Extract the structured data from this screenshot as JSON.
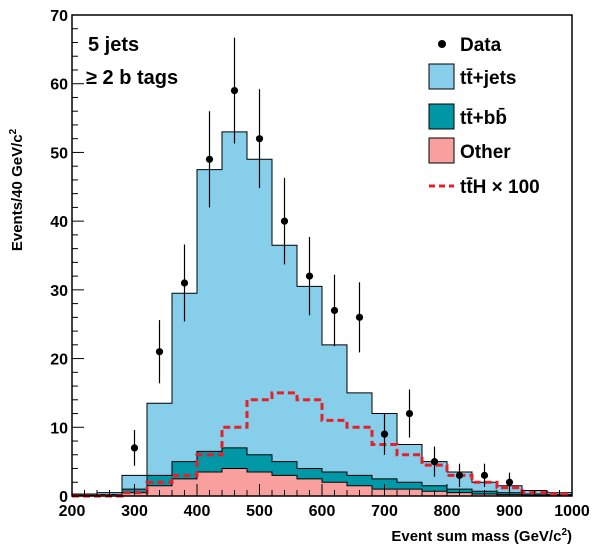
{
  "chart_data": {
    "type": "histogram",
    "xlabel": "Event sum mass (GeV/c",
    "xlabel_sup": "2",
    "xlabel_end": ")",
    "ylabel": "Events/40 GeV/c",
    "ylabel_sup": "2",
    "xlim": [
      200,
      1000
    ],
    "ylim": [
      0,
      70
    ],
    "x_ticks": [
      200,
      300,
      400,
      500,
      600,
      700,
      800,
      900,
      1000
    ],
    "y_ticks": [
      0,
      10,
      20,
      30,
      40,
      50,
      60,
      70
    ],
    "annotations": [
      "5 jets",
      "≥ 2 b tags"
    ],
    "bin_edges": [
      200,
      240,
      280,
      320,
      360,
      400,
      440,
      480,
      520,
      560,
      600,
      640,
      680,
      720,
      760,
      800,
      840,
      880,
      920,
      960,
      1000
    ],
    "stack_totals": {
      "name": "tt̄+jets",
      "values": [
        0.3,
        0.5,
        3,
        13.5,
        29.5,
        47.5,
        53,
        49,
        36.5,
        30.5,
        22,
        15,
        12,
        7.5,
        5,
        3.5,
        2,
        1.5,
        0.8,
        0.5
      ],
      "color": "#87ceeb"
    },
    "stack_ttbb": {
      "name": "tt̄+bb̄",
      "values": [
        0.1,
        0.2,
        1,
        3,
        5,
        6.5,
        7,
        6,
        5,
        4,
        3.5,
        3,
        2.5,
        2,
        1.5,
        1,
        0.7,
        0.5,
        0.3,
        0.2
      ],
      "color": "#0097a7"
    },
    "stack_other": {
      "name": "Other",
      "values": [
        0.1,
        0.2,
        0.5,
        1.5,
        2.5,
        3.5,
        4,
        3.5,
        3,
        2.5,
        2,
        1.5,
        1,
        1,
        0.7,
        0.5,
        0.3,
        0.2,
        0.1,
        0.1
      ],
      "color": "#f9a09e"
    },
    "tth": {
      "name": "tt̄H × 100",
      "values": [
        0,
        0,
        0.5,
        2,
        3,
        6,
        10,
        14,
        15,
        14,
        11,
        10,
        7.5,
        6,
        4.5,
        3,
        2,
        1.2,
        0.5,
        0.3
      ],
      "color": "#e4202a"
    },
    "data": {
      "name": "Data",
      "x": [
        300,
        340,
        380,
        420,
        460,
        500,
        540,
        580,
        620,
        660,
        700,
        740,
        780,
        820,
        860,
        900
      ],
      "y": [
        7,
        21,
        31,
        49,
        59,
        52,
        40,
        32,
        27,
        26,
        9,
        12,
        5,
        3,
        3,
        2
      ],
      "err": [
        2.6,
        4.6,
        5.6,
        7.0,
        7.7,
        7.2,
        6.3,
        5.7,
        5.2,
        5.1,
        3.0,
        3.5,
        2.2,
        1.7,
        1.7,
        1.4
      ]
    },
    "legend": [
      "Data",
      "tt̄+jets",
      "tt̄+bb̄",
      "Other",
      "tt̄H × 100"
    ]
  }
}
